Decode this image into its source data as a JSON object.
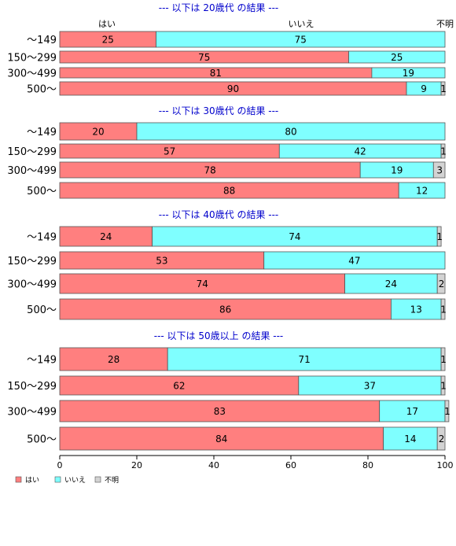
{
  "chart_data": {
    "type": "bar",
    "orientation": "horizontal",
    "stacked": true,
    "normalized": true,
    "xlim": [
      0,
      100
    ],
    "xticks": [
      "0",
      "20",
      "40",
      "60",
      "80",
      "100"
    ],
    "series_names": [
      "はい",
      "いいえ",
      "不明"
    ],
    "header_labels": [
      "はい",
      "いいえ",
      "不明"
    ],
    "legend_position": "bottom-left",
    "colors": [
      "#ff7f7f",
      "#7fffff",
      "#d3d3d3"
    ],
    "groups": [
      {
        "title": "--- 以下は 20歳代 の結果 ---",
        "rows": [
          {
            "label": "～149",
            "values": [
              25,
              75,
              0
            ],
            "labels": [
              "25",
              "75",
              ""
            ]
          },
          {
            "label": "150～299",
            "values": [
              75,
              25,
              0
            ],
            "labels": [
              "75",
              "25",
              ""
            ]
          },
          {
            "label": "300～499",
            "values": [
              81,
              19,
              0
            ],
            "labels": [
              "81",
              "19",
              ""
            ]
          },
          {
            "label": "500～",
            "values": [
              90,
              9,
              1
            ],
            "labels": [
              "90",
              "9",
              "1"
            ]
          }
        ]
      },
      {
        "title": "--- 以下は 30歳代 の結果 ---",
        "rows": [
          {
            "label": "～149",
            "values": [
              20,
              80,
              0
            ],
            "labels": [
              "20",
              "80",
              ""
            ]
          },
          {
            "label": "150～299",
            "values": [
              57,
              42,
              1
            ],
            "labels": [
              "57",
              "42",
              "1"
            ]
          },
          {
            "label": "300～499",
            "values": [
              78,
              19,
              3
            ],
            "labels": [
              "78",
              "19",
              "3"
            ]
          },
          {
            "label": "500～",
            "values": [
              88,
              12,
              0
            ],
            "labels": [
              "88",
              "12",
              ""
            ]
          }
        ]
      },
      {
        "title": "--- 以下は 40歳代 の結果 ---",
        "rows": [
          {
            "label": "～149",
            "values": [
              24,
              74,
              1
            ],
            "labels": [
              "24",
              "74",
              "1"
            ]
          },
          {
            "label": "150～299",
            "values": [
              53,
              47,
              0
            ],
            "labels": [
              "53",
              "47",
              ""
            ]
          },
          {
            "label": "300～499",
            "values": [
              74,
              24,
              2
            ],
            "labels": [
              "74",
              "24",
              "2"
            ]
          },
          {
            "label": "500～",
            "values": [
              86,
              13,
              1
            ],
            "labels": [
              "86",
              "13",
              "1"
            ]
          }
        ]
      },
      {
        "title": "--- 以下は 50歳以上 の結果 ---",
        "rows": [
          {
            "label": "～149",
            "values": [
              28,
              71,
              1
            ],
            "labels": [
              "28",
              "71",
              "1"
            ]
          },
          {
            "label": "150～299",
            "values": [
              62,
              37,
              1
            ],
            "labels": [
              "62",
              "37",
              "1"
            ]
          },
          {
            "label": "300～499",
            "values": [
              83,
              17,
              1
            ],
            "labels": [
              "83",
              "17",
              "1"
            ]
          },
          {
            "label": "500～",
            "values": [
              84,
              14,
              2
            ],
            "labels": [
              "84",
              "14",
              "2"
            ]
          }
        ]
      }
    ]
  }
}
